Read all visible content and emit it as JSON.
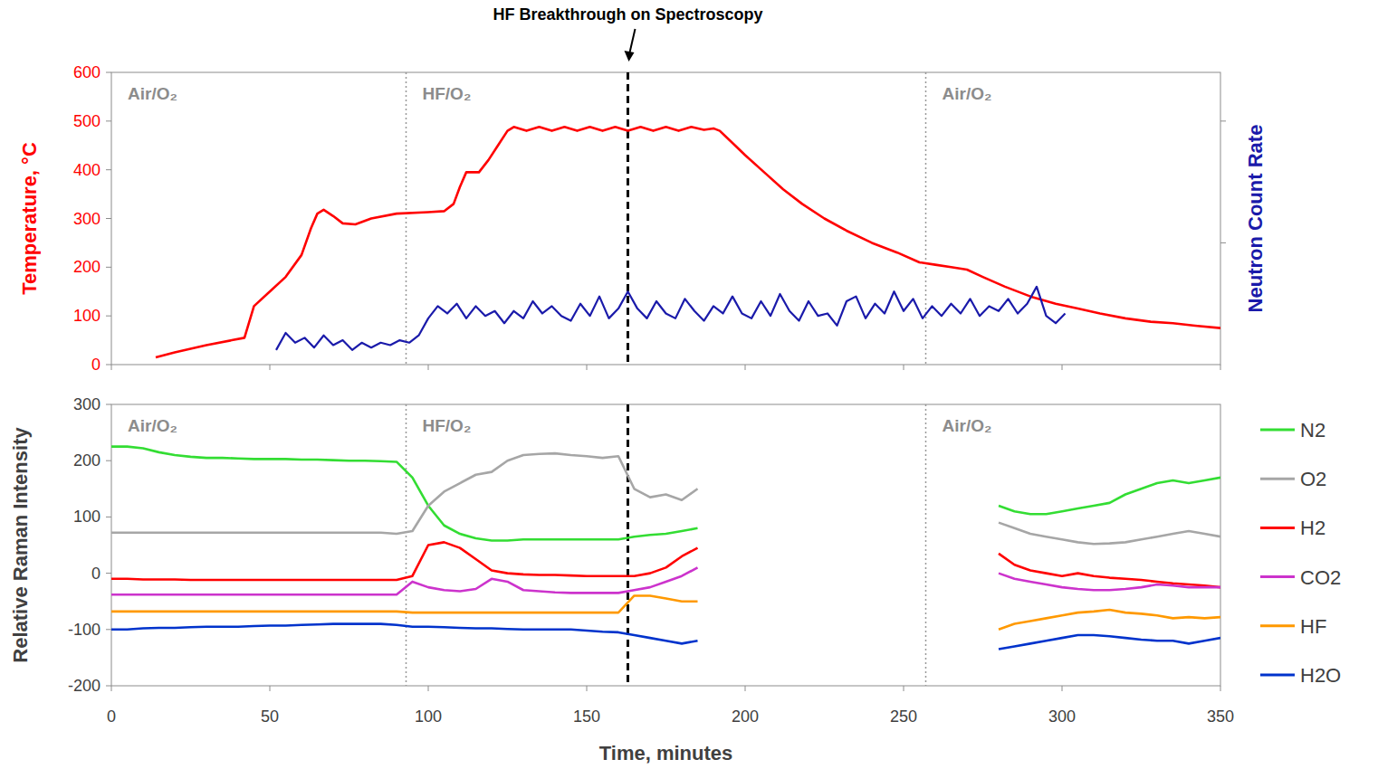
{
  "chart_data": [
    {
      "type": "line",
      "ylabel": "Temperature, °C",
      "y2label": "Neutron Count Rate",
      "xlim": [
        0,
        350
      ],
      "xticks": [
        0,
        50,
        100,
        150,
        200,
        250,
        300,
        350
      ],
      "ylim": [
        0,
        600
      ],
      "yticks": [
        0,
        100,
        200,
        300,
        400,
        500,
        600
      ],
      "y2lim": [
        0,
        600
      ],
      "y2ticks": [
        250,
        500
      ],
      "tick_labels": "y",
      "grid": false,
      "phases": [
        {
          "label": "Air/O₂",
          "x": 0
        },
        {
          "label": "HF/O₂",
          "x": 93
        },
        {
          "label": "Air/O₂",
          "x": 257
        }
      ],
      "annotation": {
        "text": "HF Breakthrough on Spectroscopy",
        "x": 163
      },
      "series": [
        {
          "name": "Temperature",
          "color": "#ff0000",
          "x": [
            14,
            20,
            30,
            38,
            42,
            45,
            50,
            55,
            60,
            63,
            65,
            67,
            70,
            73,
            77,
            82,
            90,
            100,
            105,
            108,
            110,
            112,
            116,
            119,
            122,
            125,
            127,
            131,
            135,
            139,
            143,
            147,
            151,
            155,
            159,
            163,
            167,
            171,
            175,
            179,
            183,
            187,
            190,
            192,
            196,
            200,
            206,
            212,
            218,
            225,
            232,
            240,
            248,
            255,
            260,
            265,
            270,
            275,
            282,
            290,
            298,
            305,
            312,
            320,
            328,
            335,
            342,
            350
          ],
          "values": [
            15,
            25,
            40,
            50,
            55,
            120,
            150,
            180,
            225,
            280,
            310,
            318,
            305,
            290,
            288,
            300,
            310,
            313,
            315,
            330,
            365,
            395,
            395,
            420,
            450,
            480,
            488,
            480,
            488,
            480,
            488,
            480,
            488,
            480,
            488,
            480,
            488,
            480,
            488,
            480,
            488,
            482,
            485,
            480,
            455,
            430,
            395,
            360,
            330,
            300,
            275,
            250,
            230,
            210,
            205,
            200,
            195,
            180,
            160,
            140,
            125,
            115,
            105,
            95,
            88,
            85,
            80,
            75
          ]
        },
        {
          "name": "Neutron Count Rate",
          "color": "#1a1aaa",
          "axis": "y2",
          "x": [
            52,
            55,
            58,
            61,
            64,
            67,
            70,
            73,
            76,
            79,
            82,
            85,
            88,
            91,
            94,
            97,
            100,
            103,
            106,
            109,
            112,
            115,
            118,
            121,
            124,
            127,
            130,
            133,
            136,
            139,
            142,
            145,
            148,
            151,
            154,
            157,
            160,
            163,
            166,
            169,
            172,
            175,
            178,
            181,
            184,
            187,
            190,
            193,
            196,
            199,
            202,
            205,
            208,
            211,
            214,
            217,
            220,
            223,
            226,
            229,
            232,
            235,
            238,
            241,
            244,
            247,
            250,
            253,
            256,
            259,
            262,
            265,
            268,
            271,
            274,
            277,
            280,
            283,
            286,
            289,
            292,
            295,
            298,
            301
          ],
          "values": [
            30,
            65,
            45,
            55,
            35,
            60,
            40,
            50,
            30,
            45,
            35,
            45,
            40,
            50,
            45,
            60,
            95,
            120,
            105,
            125,
            95,
            120,
            100,
            110,
            85,
            110,
            95,
            130,
            105,
            120,
            100,
            90,
            125,
            100,
            140,
            95,
            115,
            150,
            115,
            95,
            130,
            105,
            95,
            135,
            110,
            90,
            120,
            105,
            140,
            105,
            95,
            130,
            100,
            145,
            110,
            90,
            130,
            100,
            105,
            80,
            130,
            140,
            95,
            125,
            105,
            150,
            110,
            135,
            95,
            120,
            100,
            125,
            105,
            135,
            100,
            120,
            110,
            135,
            105,
            125,
            160,
            100,
            85,
            105
          ]
        }
      ]
    },
    {
      "type": "line",
      "xlabel": "Time, minutes",
      "ylabel": "Relative Raman Intensity",
      "xlim": [
        0,
        350
      ],
      "xticks": [
        0,
        50,
        100,
        150,
        200,
        250,
        300,
        350
      ],
      "ylim": [
        -200,
        300
      ],
      "yticks": [
        -200,
        -100,
        0,
        100,
        200,
        300
      ],
      "grid": false,
      "legend": "right",
      "phases": [
        {
          "label": "Air/O₂",
          "x": 0
        },
        {
          "label": "HF/O₂",
          "x": 93
        },
        {
          "label": "Air/O₂",
          "x": 257
        }
      ],
      "annotation": {
        "x": 163
      },
      "x": [
        0,
        5,
        10,
        15,
        20,
        25,
        30,
        35,
        40,
        45,
        50,
        55,
        60,
        65,
        70,
        75,
        80,
        85,
        90,
        95,
        100,
        105,
        110,
        115,
        120,
        125,
        130,
        135,
        140,
        145,
        150,
        155,
        160,
        165,
        170,
        175,
        180,
        185,
        230,
        280,
        285,
        290,
        295,
        300,
        305,
        310,
        315,
        320,
        325,
        330,
        335,
        340,
        345,
        350
      ],
      "series": [
        {
          "name": "N2",
          "color": "#33dd33",
          "values": [
            225,
            225,
            222,
            215,
            210,
            207,
            205,
            205,
            204,
            203,
            203,
            203,
            202,
            202,
            201,
            200,
            200,
            199,
            198,
            170,
            120,
            85,
            70,
            62,
            58,
            58,
            60,
            60,
            60,
            60,
            60,
            60,
            60,
            65,
            68,
            70,
            75,
            80,
            null,
            120,
            110,
            105,
            105,
            110,
            115,
            120,
            125,
            140,
            150,
            160,
            165,
            160,
            165,
            170
          ]
        },
        {
          "name": "O2",
          "color": "#a6a6a6",
          "values": [
            72,
            72,
            72,
            72,
            72,
            72,
            72,
            72,
            72,
            72,
            72,
            72,
            72,
            72,
            72,
            72,
            72,
            72,
            70,
            75,
            120,
            145,
            160,
            175,
            180,
            200,
            210,
            212,
            213,
            210,
            208,
            205,
            208,
            150,
            135,
            140,
            130,
            150,
            null,
            90,
            80,
            70,
            65,
            60,
            55,
            52,
            53,
            55,
            60,
            65,
            70,
            75,
            70,
            65
          ]
        },
        {
          "name": "H2",
          "color": "#ff0000",
          "values": [
            -10,
            -10,
            -11,
            -11,
            -11,
            -12,
            -12,
            -12,
            -12,
            -12,
            -12,
            -12,
            -12,
            -12,
            -12,
            -12,
            -12,
            -12,
            -12,
            -5,
            50,
            55,
            45,
            25,
            5,
            0,
            -2,
            -3,
            -3,
            -4,
            -5,
            -5,
            -5,
            -5,
            0,
            10,
            30,
            45,
            null,
            35,
            15,
            5,
            0,
            -5,
            0,
            -5,
            -8,
            -10,
            -12,
            -15,
            -18,
            -20,
            -22,
            -25
          ]
        },
        {
          "name": "CO2",
          "color": "#cc33cc",
          "values": [
            -38,
            -38,
            -38,
            -38,
            -38,
            -38,
            -38,
            -38,
            -38,
            -38,
            -38,
            -38,
            -38,
            -38,
            -38,
            -38,
            -38,
            -38,
            -38,
            -15,
            -25,
            -30,
            -32,
            -28,
            -10,
            -15,
            -30,
            -32,
            -34,
            -35,
            -35,
            -35,
            -35,
            -30,
            -25,
            -15,
            -5,
            10,
            null,
            0,
            -10,
            -15,
            -20,
            -25,
            -28,
            -30,
            -30,
            -28,
            -25,
            -20,
            -22,
            -25,
            -25,
            -25
          ]
        },
        {
          "name": "HF",
          "color": "#ff9900",
          "values": [
            -68,
            -68,
            -68,
            -68,
            -68,
            -68,
            -68,
            -68,
            -68,
            -68,
            -68,
            -68,
            -68,
            -68,
            -68,
            -68,
            -68,
            -68,
            -68,
            -70,
            -70,
            -70,
            -70,
            -70,
            -70,
            -70,
            -70,
            -70,
            -70,
            -70,
            -70,
            -70,
            -70,
            -40,
            -40,
            -45,
            -50,
            -50,
            null,
            -100,
            -90,
            -85,
            -80,
            -75,
            -70,
            -68,
            -65,
            -70,
            -72,
            -75,
            -80,
            -78,
            -80,
            -78
          ]
        },
        {
          "name": "H2O",
          "color": "#0033cc",
          "values": [
            -100,
            -100,
            -98,
            -97,
            -97,
            -96,
            -95,
            -95,
            -95,
            -94,
            -93,
            -93,
            -92,
            -91,
            -90,
            -90,
            -90,
            -90,
            -92,
            -95,
            -95,
            -96,
            -97,
            -98,
            -98,
            -99,
            -100,
            -100,
            -100,
            -100,
            -102,
            -104,
            -105,
            -110,
            -115,
            -120,
            -125,
            -120,
            null,
            -135,
            -130,
            -125,
            -120,
            -115,
            -110,
            -110,
            -112,
            -115,
            -118,
            -120,
            -120,
            -125,
            -120,
            -115
          ]
        }
      ]
    }
  ]
}
